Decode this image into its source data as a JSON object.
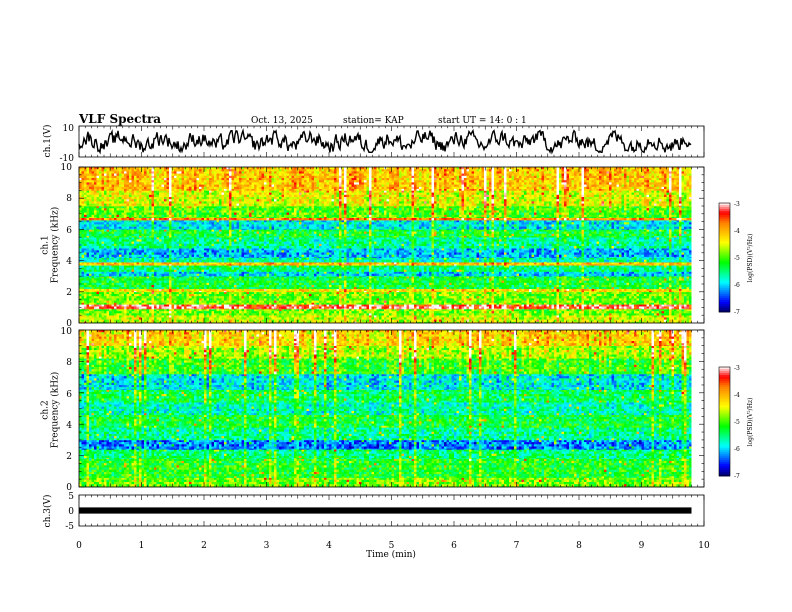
{
  "header": {
    "title": "VLF Spectra",
    "date": "Oct. 13, 2025",
    "station": "station= KAP",
    "start": "start  UT =   14: 0  : 1"
  },
  "chart_data": [
    {
      "type": "line",
      "name": "ch1-waveform",
      "ylabel": "ch.1(V)",
      "ylim": [
        -10,
        10
      ],
      "yticks": [
        "10",
        "-10"
      ],
      "xlim": [
        0,
        10
      ],
      "trace_range_min": [
        0,
        9.8
      ],
      "note": "noisy oscillating trace between about -6 and 6 V"
    },
    {
      "type": "heatmap",
      "name": "ch1-spectrogram",
      "ylabel": "ch.1\nFrequency (kHz)",
      "ylim": [
        0,
        10
      ],
      "yticks": [
        "0",
        "2",
        "4",
        "6",
        "8",
        "10"
      ],
      "xlim": [
        0,
        10
      ],
      "data_extent_min": [
        0,
        9.8
      ],
      "colorbar": {
        "label": "log(PSD)(V²/Hz)",
        "range": [
          -7,
          -3
        ],
        "ticks": [
          "-3",
          "-4",
          "-5",
          "-6",
          "-7"
        ]
      },
      "bands": [
        {
          "f": [
            0.0,
            0.5
          ],
          "level": -4.6
        },
        {
          "f": [
            0.5,
            0.9
          ],
          "level": -4.9
        },
        {
          "f": [
            0.9,
            1.2
          ],
          "level": -3.3
        },
        {
          "f": [
            1.2,
            2.0
          ],
          "level": -4.9
        },
        {
          "f": [
            2.0,
            2.2
          ],
          "level": -4.3
        },
        {
          "f": [
            2.2,
            3.0
          ],
          "level": -5.3
        },
        {
          "f": [
            3.0,
            3.3
          ],
          "level": -6.0
        },
        {
          "f": [
            3.3,
            3.7
          ],
          "level": -5.5
        },
        {
          "f": [
            3.7,
            3.9
          ],
          "level": -4.1
        },
        {
          "f": [
            3.9,
            4.2
          ],
          "level": -5.7
        },
        {
          "f": [
            4.2,
            4.8
          ],
          "level": -6.1
        },
        {
          "f": [
            4.8,
            5.5
          ],
          "level": -5.6
        },
        {
          "f": [
            5.5,
            6.0
          ],
          "level": -5.3
        },
        {
          "f": [
            6.0,
            6.6
          ],
          "level": -5.9
        },
        {
          "f": [
            6.6,
            6.75
          ],
          "level": -3.8
        },
        {
          "f": [
            6.75,
            7.5
          ],
          "level": -5.0
        },
        {
          "f": [
            7.5,
            8.5
          ],
          "level": -4.5
        },
        {
          "f": [
            8.5,
            10.0
          ],
          "level": -4.1
        }
      ]
    },
    {
      "type": "heatmap",
      "name": "ch2-spectrogram",
      "ylabel": "ch.2\nFrequency (kHz)",
      "ylim": [
        0,
        10
      ],
      "yticks": [
        "0",
        "2",
        "4",
        "6",
        "8",
        "10"
      ],
      "xlim": [
        0,
        10
      ],
      "data_extent_min": [
        0,
        9.8
      ],
      "colorbar": {
        "label": "log(PSD)(V²/Hz)",
        "range": [
          -7,
          -3
        ],
        "ticks": [
          "-3",
          "-4",
          "-5",
          "-6",
          "-7"
        ]
      },
      "bands": [
        {
          "f": [
            0.0,
            0.6
          ],
          "level": -4.9
        },
        {
          "f": [
            0.6,
            1.8
          ],
          "level": -5.2
        },
        {
          "f": [
            1.8,
            2.4
          ],
          "level": -5.5
        },
        {
          "f": [
            2.4,
            3.0
          ],
          "level": -6.3
        },
        {
          "f": [
            3.0,
            3.8
          ],
          "level": -5.6
        },
        {
          "f": [
            3.8,
            4.6
          ],
          "level": -5.3
        },
        {
          "f": [
            4.6,
            5.4
          ],
          "level": -5.7
        },
        {
          "f": [
            5.4,
            6.2
          ],
          "level": -5.4
        },
        {
          "f": [
            6.2,
            7.2
          ],
          "level": -5.9
        },
        {
          "f": [
            7.2,
            8.2
          ],
          "level": -5.1
        },
        {
          "f": [
            8.2,
            9.0
          ],
          "level": -4.7
        },
        {
          "f": [
            9.0,
            10.0
          ],
          "level": -4.2
        }
      ]
    },
    {
      "type": "line",
      "name": "ch3-signal",
      "ylabel": "ch.3(V)",
      "ylim": [
        -5,
        5
      ],
      "yticks": [
        "5",
        "0",
        "-5"
      ],
      "xlim": [
        0,
        10
      ],
      "trace_range_min": [
        0,
        9.8
      ],
      "band_v": [
        -1,
        1
      ]
    }
  ],
  "xaxis": {
    "label": "Time (min)",
    "ticks": [
      "0",
      "1",
      "2",
      "3",
      "4",
      "5",
      "6",
      "7",
      "8",
      "9",
      "10"
    ]
  },
  "colors": {
    "colormap": [
      "#000066",
      "#0000ff",
      "#0080ff",
      "#00ffff",
      "#00ff80",
      "#00ff00",
      "#80ff00",
      "#ffff00",
      "#ffc000",
      "#ff8000",
      "#ff0000",
      "#ffffff"
    ]
  }
}
